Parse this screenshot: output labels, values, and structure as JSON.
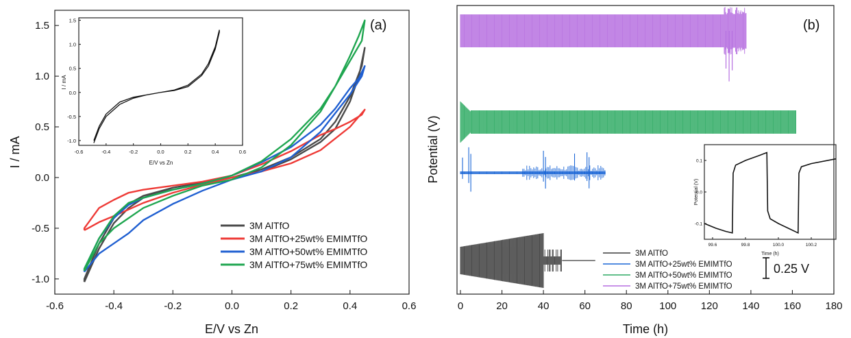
{
  "panel_labels": {
    "a": "(a)",
    "b": "(b)"
  },
  "chart_data": [
    {
      "type": "line",
      "panel": "(a)",
      "xlabel": "E/V vs Zn",
      "ylabel": "I / mA",
      "xlim": [
        -0.6,
        0.6
      ],
      "ylim": [
        -1.15,
        1.65
      ],
      "xticks": [
        "-0.6",
        "-0.4",
        "-0.2",
        "0.0",
        "0.2",
        "0.4",
        "0.6"
      ],
      "yticks": [
        "-1.0",
        "-0.5",
        "0.0",
        "0.5",
        "1.0",
        "1.5"
      ],
      "legend_position": "bottom-right",
      "series": [
        {
          "name": "3M AlTfO",
          "color": "#4a4a4a",
          "x": [
            -0.5,
            -0.45,
            -0.4,
            -0.35,
            -0.3,
            -0.2,
            -0.1,
            0.0,
            0.1,
            0.2,
            0.3,
            0.35,
            0.4,
            0.43,
            0.45,
            0.44,
            0.42,
            0.4,
            0.35,
            0.3,
            0.2,
            0.1,
            0.0,
            -0.1,
            -0.2,
            -0.3,
            -0.35,
            -0.4,
            -0.45,
            -0.5
          ],
          "y": [
            -1.03,
            -0.7,
            -0.45,
            -0.3,
            -0.2,
            -0.1,
            -0.05,
            0.0,
            0.06,
            0.18,
            0.35,
            0.48,
            0.75,
            1.0,
            1.28,
            1.1,
            0.95,
            0.8,
            0.55,
            0.38,
            0.2,
            0.08,
            0.0,
            -0.05,
            -0.1,
            -0.18,
            -0.26,
            -0.4,
            -0.65,
            -1.0
          ]
        },
        {
          "name": "3M AlTfO+25wt% EMIMTfO",
          "color": "#ee3a36",
          "x": [
            -0.5,
            -0.45,
            -0.4,
            -0.3,
            -0.2,
            -0.1,
            0.0,
            0.1,
            0.2,
            0.3,
            0.4,
            0.45,
            0.44,
            0.4,
            0.35,
            0.3,
            0.2,
            0.1,
            0.0,
            -0.1,
            -0.2,
            -0.3,
            -0.35,
            -0.4,
            -0.45,
            -0.5
          ],
          "y": [
            -0.52,
            -0.44,
            -0.38,
            -0.25,
            -0.15,
            -0.07,
            0.0,
            0.06,
            0.14,
            0.27,
            0.5,
            0.67,
            0.62,
            0.55,
            0.48,
            0.42,
            0.26,
            0.13,
            0.02,
            -0.04,
            -0.08,
            -0.12,
            -0.15,
            -0.22,
            -0.3,
            -0.5
          ]
        },
        {
          "name": "3M AlTfO+50wt% EMIMTfO",
          "color": "#1f5fd1",
          "x": [
            -0.5,
            -0.45,
            -0.4,
            -0.35,
            -0.3,
            -0.2,
            -0.1,
            0.0,
            0.1,
            0.2,
            0.3,
            0.4,
            0.44,
            0.45,
            0.43,
            0.4,
            0.35,
            0.3,
            0.2,
            0.1,
            0.0,
            -0.1,
            -0.2,
            -0.3,
            -0.35,
            -0.4,
            -0.45,
            -0.5
          ],
          "y": [
            -0.93,
            -0.75,
            -0.65,
            -0.55,
            -0.42,
            -0.26,
            -0.13,
            -0.02,
            0.06,
            0.2,
            0.45,
            0.82,
            1.0,
            1.1,
            0.98,
            0.88,
            0.68,
            0.52,
            0.3,
            0.15,
            0.02,
            -0.06,
            -0.12,
            -0.2,
            -0.27,
            -0.4,
            -0.6,
            -0.9
          ]
        },
        {
          "name": "3M AlTfO+75wt% EMIMTfO",
          "color": "#1fa650",
          "x": [
            -0.5,
            -0.45,
            -0.4,
            -0.35,
            -0.3,
            -0.2,
            -0.1,
            0.0,
            0.1,
            0.2,
            0.3,
            0.35,
            0.4,
            0.43,
            0.45,
            0.44,
            0.4,
            0.35,
            0.3,
            0.2,
            0.1,
            0.0,
            -0.1,
            -0.2,
            -0.3,
            -0.35,
            -0.4,
            -0.45,
            -0.5
          ],
          "y": [
            -0.92,
            -0.65,
            -0.5,
            -0.4,
            -0.3,
            -0.18,
            -0.08,
            -0.02,
            0.1,
            0.32,
            0.65,
            0.9,
            1.2,
            1.4,
            1.55,
            1.35,
            1.15,
            0.9,
            0.68,
            0.38,
            0.16,
            0.02,
            -0.06,
            -0.12,
            -0.2,
            -0.25,
            -0.38,
            -0.6,
            -0.9
          ]
        }
      ]
    },
    {
      "type": "line",
      "panel": "(a) inset",
      "xlabel": "E/V vs Zn",
      "ylabel": "I / mA",
      "xlim": [
        -0.6,
        0.6
      ],
      "ylim": [
        -1.1,
        1.55
      ],
      "xticks": [
        "-0.6",
        "-0.4",
        "-0.2",
        "0.0",
        "0.2",
        "0.4",
        "0.6"
      ],
      "yticks": [
        "-1.0",
        "-0.5",
        "0.0",
        "0.5",
        "1.0",
        "1.5"
      ],
      "series": [
        {
          "color": "#111111",
          "x": [
            -0.49,
            -0.45,
            -0.4,
            -0.3,
            -0.2,
            -0.1,
            0.0,
            0.1,
            0.2,
            0.3,
            0.35,
            0.4,
            0.43,
            0.43,
            0.4,
            0.35,
            0.3,
            0.2,
            0.1,
            0.0,
            -0.1,
            -0.2,
            -0.3,
            -0.4,
            -0.45,
            -0.49
          ],
          "y": [
            -1.05,
            -0.75,
            -0.5,
            -0.25,
            -0.12,
            -0.05,
            0.0,
            0.05,
            0.15,
            0.38,
            0.6,
            0.95,
            1.3,
            1.25,
            0.9,
            0.55,
            0.35,
            0.12,
            0.04,
            0.0,
            -0.05,
            -0.1,
            -0.2,
            -0.45,
            -0.7,
            -1.0
          ]
        }
      ]
    },
    {
      "type": "line",
      "panel": "(b)",
      "xlabel": "Time (h)",
      "ylabel": "Potential (V)",
      "xlim": [
        0,
        180
      ],
      "xticks": [
        "0",
        "20",
        "40",
        "60",
        "80",
        "100",
        "120",
        "140",
        "160",
        "180"
      ],
      "legend_position": "bottom-right",
      "scale_bar_label": "0.25 V",
      "series": [
        {
          "name": "3M AlTfO",
          "color": "#3c3c3c",
          "x_end": 65
        },
        {
          "name": "3M AlTfO+25wt% EMIMTfO",
          "color": "#1a66d6",
          "x_end": 70
        },
        {
          "name": "3M AlTfO+50wt% EMIMTfO",
          "color": "#2eaa63",
          "x_end": 162
        },
        {
          "name": "3M AlTfO+75wt% EMIMTfO",
          "color": "#b56ee0",
          "x_end": 138
        }
      ]
    },
    {
      "type": "line",
      "panel": "(b) inset",
      "xlabel": "Time (h)",
      "ylabel": "Potential (V)",
      "xlim": [
        99.55,
        100.35
      ],
      "ylim": [
        -0.15,
        0.15
      ],
      "xticks": [
        "99.6",
        "99.8",
        "100.0",
        "100.2"
      ],
      "yticks": [
        "-0.1",
        "0.0",
        "0.1"
      ],
      "series": [
        {
          "color": "#111111",
          "x": [
            99.55,
            99.62,
            99.68,
            99.72,
            99.725,
            99.74,
            99.8,
            99.88,
            99.93,
            99.935,
            99.95,
            100.0,
            100.06,
            100.12,
            100.125,
            100.14,
            100.2,
            100.35
          ],
          "y": [
            -0.1,
            -0.115,
            -0.125,
            -0.13,
            0.06,
            0.085,
            0.1,
            0.115,
            0.125,
            -0.06,
            -0.085,
            -0.1,
            -0.115,
            -0.13,
            0.06,
            0.08,
            0.09,
            0.105
          ]
        }
      ]
    }
  ]
}
